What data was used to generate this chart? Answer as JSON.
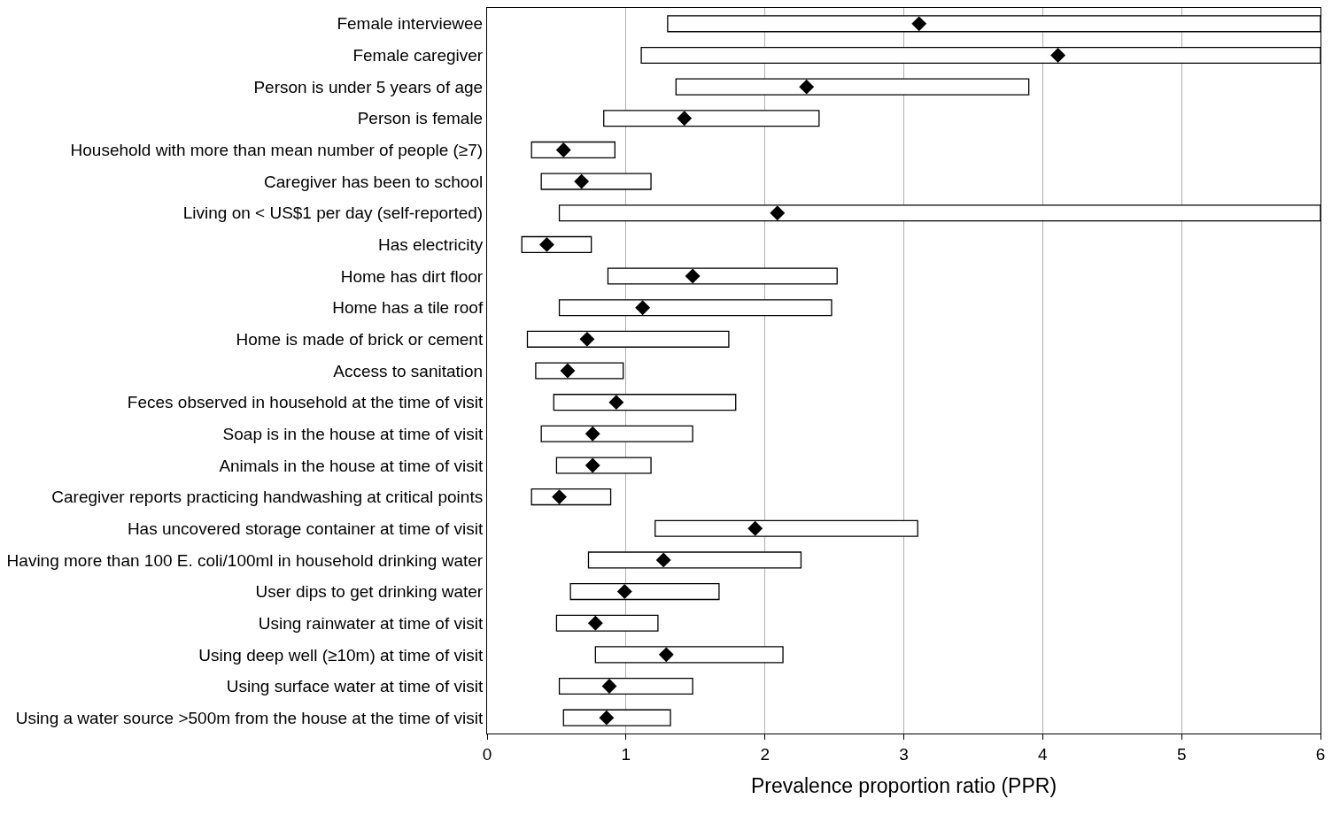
{
  "chart_data": {
    "type": "bar",
    "orientation": "horizontal",
    "xlabel": "Prevalence proportion ratio (PPR)",
    "categories": [
      "Female interviewee",
      "Female caregiver",
      "Person is under 5 years of age",
      "Person is female",
      "Household with more than mean number of people (≥7)",
      "Caregiver has been to school",
      "Living on < US$1 per day (self-reported)",
      "Has electricity",
      "Home has dirt floor",
      "Home has a tile roof",
      "Home is made of brick or cement",
      "Access to sanitation",
      "Feces observed in household at the time of visit",
      "Soap is in the house at time of visit",
      "Animals in the house at time of visit",
      "Caregiver reports practicing handwashing at critical points",
      "Has uncovered storage container at time of visit",
      "Having more than 100 E. coli/100ml in household drinking water",
      "User dips to get drinking water",
      "Using rainwater at time of visit",
      "Using deep well (≥10m) at time of visit",
      "Using surface water at time of visit",
      "Using a water source >500m from the house at the time of visit"
    ],
    "series": [
      {
        "color": "#ffffff",
        "base": [
          1.3,
          1.11,
          1.36,
          0.84,
          0.32,
          0.39,
          0.52,
          0.25,
          0.87,
          0.52,
          0.29,
          0.35,
          0.48,
          0.39,
          0.5,
          0.32,
          1.21,
          0.73,
          0.6,
          0.5,
          0.78,
          0.52,
          0.55
        ],
        "values": [
          4.7,
          4.89,
          2.54,
          1.55,
          0.6,
          0.79,
          5.48,
          0.5,
          1.65,
          1.96,
          1.45,
          0.63,
          1.31,
          1.09,
          0.68,
          0.57,
          1.89,
          1.53,
          1.07,
          0.73,
          1.35,
          0.96,
          0.77
        ]
      },
      {
        "type": "scatter",
        "marker": "diamond",
        "color": "#000000",
        "values": [
          3.11,
          4.11,
          2.3,
          1.42,
          0.55,
          0.68,
          2.09,
          0.43,
          1.48,
          1.12,
          0.72,
          0.58,
          0.93,
          0.76,
          0.76,
          0.52,
          1.93,
          1.27,
          0.99,
          0.78,
          1.29,
          0.88,
          0.86
        ]
      }
    ],
    "xlim": [
      0,
      6
    ],
    "xticks": [
      0,
      1,
      2,
      3,
      4,
      5,
      6
    ],
    "grid": "x"
  }
}
